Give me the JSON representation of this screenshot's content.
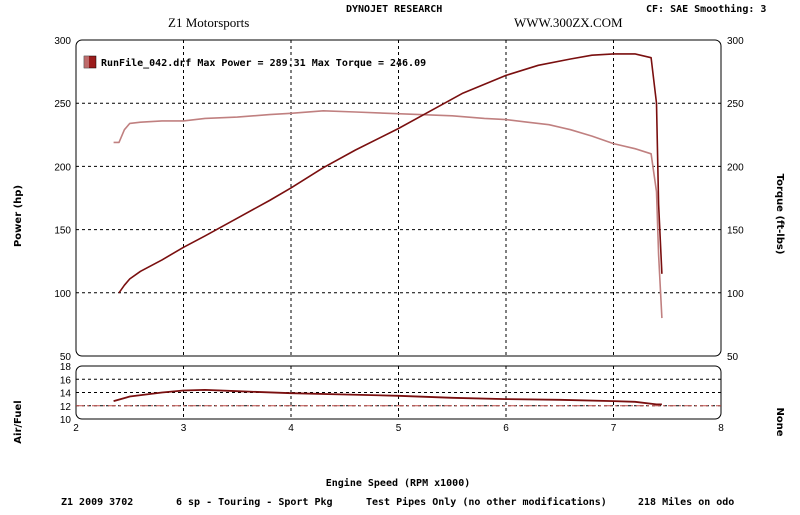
{
  "header": {
    "shop": "Z1 Motorsports",
    "vendor": "DYNOJET RESEARCH",
    "website": "WWW.300ZX.COM",
    "settings": "CF: SAE  Smoothing: 3"
  },
  "legend": {
    "text": "RunFile_042.drf Max Power = 289.31    Max Torque = 246.09",
    "swatch_color": "#9b1c1c"
  },
  "footer": {
    "car": "Z1 2009 3702",
    "transmission": "6 sp - Touring - Sport Pkg",
    "mods": "Test Pipes Only (no other modifications)",
    "odometer": "218 Miles on odo"
  },
  "colors": {
    "power": "#7a0f0f",
    "torque": "#c08080",
    "afr": "#7a0f0f",
    "afr_ref": "#c0504d"
  },
  "chart_data": [
    {
      "type": "line",
      "title": "",
      "xlabel": "Engine Speed (RPM x1000)",
      "ylabel": "Power (hp)",
      "y2label": "Torque (ft-lbs)",
      "xlim": [
        2,
        8
      ],
      "ylim": [
        50,
        300
      ],
      "y2lim": [
        50,
        300
      ],
      "xticks": [
        "2",
        "3",
        "4",
        "5",
        "6",
        "7",
        "8"
      ],
      "yticks": [
        "50",
        "100",
        "150",
        "200",
        "250",
        "300"
      ],
      "y2ticks": [
        "50",
        "100",
        "150",
        "200",
        "250",
        "300"
      ],
      "grid": true,
      "legend_position": "top-left",
      "series": [
        {
          "name": "",
          "axis": "left",
          "x": [
            2.4,
            2.45,
            2.5,
            2.6,
            2.8,
            3.0,
            3.2,
            3.5,
            3.8,
            4.0,
            4.3,
            4.6,
            5.0,
            5.3,
            5.6,
            6.0,
            6.3,
            6.6,
            6.8,
            7.0,
            7.2,
            7.35,
            7.4,
            7.42,
            7.45
          ],
          "y": [
            100,
            106,
            111,
            117,
            126,
            136,
            145,
            159,
            173,
            183,
            199,
            213,
            230,
            244,
            258,
            272,
            280,
            285,
            288,
            289,
            289,
            286,
            250,
            170,
            115
          ]
        },
        {
          "name": "",
          "axis": "right",
          "x": [
            2.35,
            2.4,
            2.45,
            2.5,
            2.6,
            2.8,
            3.0,
            3.2,
            3.5,
            3.8,
            4.0,
            4.3,
            4.6,
            4.9,
            5.2,
            5.5,
            5.8,
            6.0,
            6.2,
            6.4,
            6.6,
            6.8,
            7.0,
            7.2,
            7.35,
            7.4,
            7.42,
            7.45
          ],
          "y": [
            219,
            219,
            229,
            234,
            235,
            236,
            236,
            238,
            239,
            241,
            242,
            244,
            243,
            242,
            241,
            240,
            238,
            237,
            235,
            233,
            229,
            224,
            218,
            214,
            210,
            180,
            130,
            80
          ]
        }
      ]
    },
    {
      "type": "line",
      "title": "",
      "xlabel": "Engine Speed (RPM x1000)",
      "ylabel": "Air/Fuel",
      "y2label": "None",
      "xlim": [
        2,
        8
      ],
      "ylim": [
        10,
        18
      ],
      "xticks": [
        "2",
        "3",
        "4",
        "5",
        "6",
        "7",
        "8"
      ],
      "yticks": [
        "10",
        "12",
        "14",
        "16",
        "18"
      ],
      "reference_line": 12,
      "grid": true,
      "series": [
        {
          "name": "",
          "x": [
            2.35,
            2.5,
            2.8,
            3.0,
            3.2,
            3.5,
            4.0,
            4.5,
            5.0,
            5.5,
            6.0,
            6.5,
            7.0,
            7.2,
            7.4,
            7.45
          ],
          "y": [
            12.7,
            13.4,
            14.0,
            14.3,
            14.4,
            14.2,
            13.9,
            13.7,
            13.5,
            13.2,
            13.0,
            12.9,
            12.7,
            12.6,
            12.2,
            12.2
          ]
        }
      ]
    }
  ]
}
